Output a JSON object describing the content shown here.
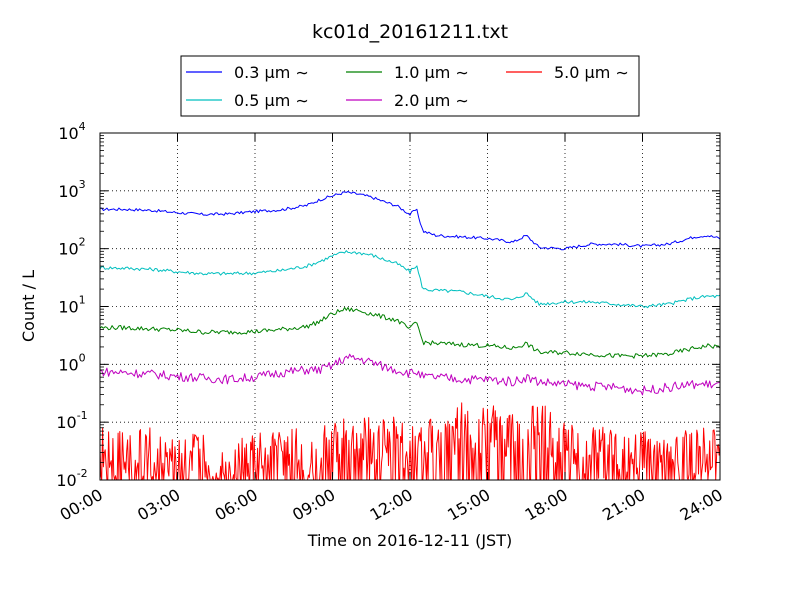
{
  "chart_data": {
    "type": "line",
    "title": "kc01d_20161211.txt",
    "xlabel": "Time on 2016-12-11 (JST)",
    "ylabel": "Count / L",
    "yscale": "log",
    "ylim": [
      0.01,
      10000
    ],
    "xlim": [
      "00:00",
      "24:00"
    ],
    "xticks": [
      "00:00",
      "03:00",
      "06:00",
      "09:00",
      "12:00",
      "15:00",
      "18:00",
      "21:00",
      "24:00"
    ],
    "yticks": [
      {
        "base": "10",
        "exp": "-2",
        "value": 0.01
      },
      {
        "base": "10",
        "exp": "-1",
        "value": 0.1
      },
      {
        "base": "10",
        "exp": "0",
        "value": 1
      },
      {
        "base": "10",
        "exp": "1",
        "value": 10
      },
      {
        "base": "10",
        "exp": "2",
        "value": 100
      },
      {
        "base": "10",
        "exp": "3",
        "value": 1000
      },
      {
        "base": "10",
        "exp": "4",
        "value": 10000
      }
    ],
    "grid": true,
    "legend_position": "top-center",
    "series": [
      {
        "name": "0.3 μm ∼",
        "color": "#0000ff",
        "x": [
          "00:00",
          "01:00",
          "02:00",
          "03:00",
          "04:00",
          "05:00",
          "06:00",
          "07:00",
          "08:00",
          "08:30",
          "09:00",
          "09:30",
          "10:00",
          "10:30",
          "11:00",
          "11:30",
          "12:00",
          "12:15",
          "12:30",
          "13:00",
          "14:00",
          "15:00",
          "16:00",
          "16:30",
          "17:00",
          "18:00",
          "19:00",
          "20:00",
          "21:00",
          "22:00",
          "23:00",
          "23:30",
          "24:00"
        ],
        "y": [
          480,
          480,
          460,
          420,
          390,
          400,
          440,
          470,
          560,
          700,
          820,
          950,
          880,
          780,
          650,
          550,
          390,
          480,
          200,
          170,
          160,
          150,
          130,
          170,
          105,
          100,
          120,
          120,
          110,
          120,
          160,
          170,
          150
        ]
      },
      {
        "name": "0.5 μm ∼",
        "color": "#00bfbf",
        "x": [
          "00:00",
          "01:00",
          "02:00",
          "03:00",
          "04:00",
          "05:00",
          "06:00",
          "07:00",
          "08:00",
          "08:30",
          "09:00",
          "09:30",
          "10:00",
          "10:30",
          "11:00",
          "11:30",
          "12:00",
          "12:15",
          "12:30",
          "13:00",
          "14:00",
          "15:00",
          "16:00",
          "16:30",
          "17:00",
          "18:00",
          "19:00",
          "20:00",
          "21:00",
          "22:00",
          "23:00",
          "23:30",
          "24:00"
        ],
        "y": [
          47,
          46,
          44,
          40,
          37,
          37,
          38,
          42,
          50,
          60,
          75,
          88,
          85,
          78,
          65,
          55,
          40,
          52,
          20,
          19,
          18,
          15,
          13,
          17,
          11,
          12,
          12,
          11,
          10,
          11,
          14,
          15,
          15
        ]
      },
      {
        "name": "1.0 μm ∼",
        "color": "#008000",
        "x": [
          "00:00",
          "01:00",
          "02:00",
          "03:00",
          "04:00",
          "05:00",
          "06:00",
          "07:00",
          "08:00",
          "08:30",
          "09:00",
          "09:30",
          "10:00",
          "10:30",
          "11:00",
          "11:30",
          "12:00",
          "12:15",
          "12:30",
          "13:00",
          "14:00",
          "15:00",
          "16:00",
          "16:30",
          "17:00",
          "18:00",
          "19:00",
          "20:00",
          "21:00",
          "22:00",
          "23:00",
          "23:30",
          "24:00"
        ],
        "y": [
          4.3,
          4.3,
          4.1,
          3.9,
          3.6,
          3.6,
          3.7,
          4.0,
          4.5,
          5.5,
          7.5,
          9.0,
          8.5,
          7.5,
          6.5,
          5.8,
          4.0,
          5.5,
          2.4,
          2.3,
          2.2,
          2.1,
          1.9,
          2.3,
          1.6,
          1.6,
          1.5,
          1.4,
          1.4,
          1.5,
          1.9,
          2.1,
          2.0
        ]
      },
      {
        "name": "2.0 μm ∼",
        "color": "#bf00bf",
        "x": [
          "00:00",
          "01:00",
          "02:00",
          "03:00",
          "04:00",
          "05:00",
          "06:00",
          "07:00",
          "08:00",
          "08:30",
          "09:00",
          "09:30",
          "10:00",
          "10:30",
          "11:00",
          "11:30",
          "12:00",
          "12:15",
          "12:30",
          "13:00",
          "14:00",
          "15:00",
          "16:00",
          "16:30",
          "17:00",
          "18:00",
          "19:00",
          "20:00",
          "21:00",
          "22:00",
          "23:00",
          "23:30",
          "24:00"
        ],
        "y": [
          0.75,
          0.72,
          0.68,
          0.62,
          0.58,
          0.55,
          0.6,
          0.72,
          0.8,
          0.8,
          0.95,
          1.3,
          1.25,
          1.1,
          0.9,
          0.8,
          0.7,
          0.75,
          0.6,
          0.6,
          0.55,
          0.55,
          0.5,
          0.6,
          0.5,
          0.45,
          0.42,
          0.4,
          0.35,
          0.4,
          0.45,
          0.45,
          0.45
        ]
      },
      {
        "name": "5.0 μm ∼",
        "color": "#ff0000",
        "x": [
          "00:00",
          "01:00",
          "02:00",
          "03:00",
          "04:00",
          "05:00",
          "06:00",
          "07:00",
          "08:00",
          "09:00",
          "10:00",
          "11:00",
          "12:00",
          "13:00",
          "14:00",
          "15:00",
          "16:00",
          "17:00",
          "18:00",
          "19:00",
          "20:00",
          "21:00",
          "22:00",
          "23:00",
          "24:00"
        ],
        "y": [
          0.03,
          0.03,
          0.03,
          0.025,
          0.025,
          0.02,
          0.025,
          0.03,
          0.03,
          0.04,
          0.05,
          0.05,
          0.04,
          0.06,
          0.08,
          0.07,
          0.07,
          0.08,
          0.04,
          0.03,
          0.03,
          0.025,
          0.025,
          0.03,
          0.03
        ]
      }
    ]
  }
}
